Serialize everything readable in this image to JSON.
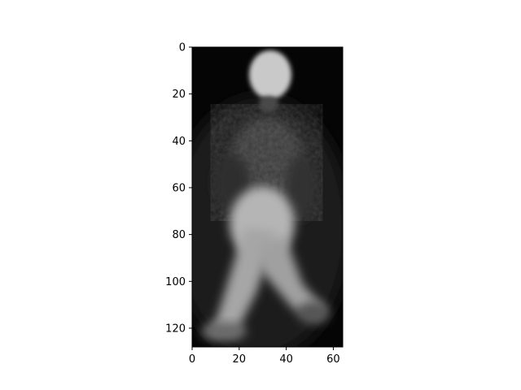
{
  "figure": {
    "x_axis": {
      "range": [
        0,
        64
      ],
      "ticks": [
        0,
        20,
        40,
        60
      ]
    },
    "y_axis": {
      "range": [
        0,
        128
      ],
      "ticks": [
        0,
        20,
        40,
        60,
        80,
        100,
        120
      ],
      "inverted": true
    },
    "image": {
      "colormap": "gray",
      "background_color": "#000000",
      "subject_color": "#ffffff"
    }
  }
}
